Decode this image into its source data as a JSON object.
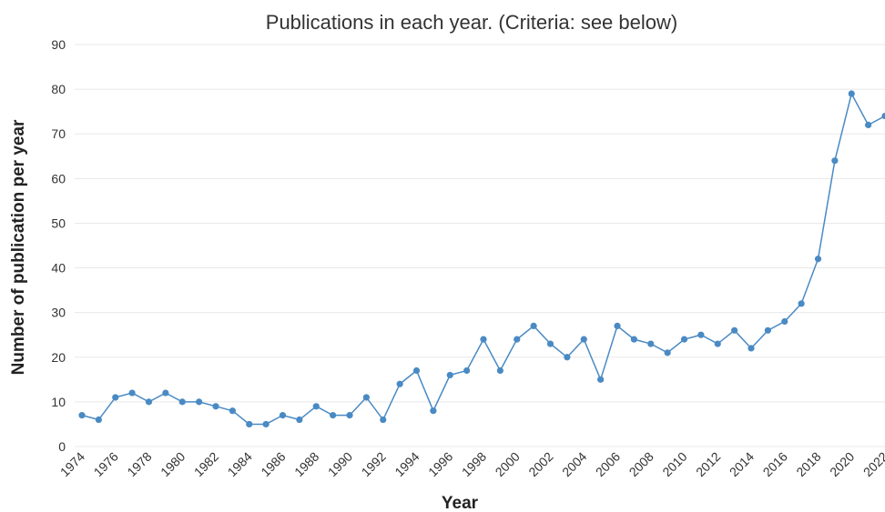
{
  "chart_data": {
    "type": "line",
    "title": "Publications in each year. (Criteria: see below)",
    "xlabel": "Year",
    "ylabel": "Number of publication per year",
    "ylim": [
      0,
      90
    ],
    "yticks": [
      0,
      10,
      20,
      30,
      40,
      50,
      60,
      70,
      80,
      90
    ],
    "xtick_labels": [
      "1974",
      "1976",
      "1978",
      "1980",
      "1982",
      "1984",
      "1986",
      "1988",
      "1990",
      "1992",
      "1994",
      "1996",
      "1998",
      "2000",
      "2002",
      "2004",
      "2006",
      "2008",
      "2010",
      "2012",
      "2014",
      "2016",
      "2018",
      "2020",
      "2022"
    ],
    "grid": true,
    "color": "#4a8ac4",
    "x": [
      1974,
      1975,
      1976,
      1977,
      1978,
      1979,
      1980,
      1981,
      1982,
      1983,
      1984,
      1985,
      1986,
      1987,
      1988,
      1989,
      1990,
      1991,
      1992,
      1993,
      1994,
      1995,
      1996,
      1997,
      1998,
      1999,
      2000,
      2001,
      2002,
      2003,
      2004,
      2005,
      2006,
      2007,
      2008,
      2009,
      2010,
      2011,
      2012,
      2013,
      2014,
      2015,
      2016,
      2017,
      2018,
      2019,
      2020,
      2021,
      2022
    ],
    "values": [
      7,
      6,
      11,
      12,
      10,
      12,
      10,
      10,
      9,
      8,
      5,
      5,
      7,
      6,
      9,
      7,
      7,
      11,
      6,
      14,
      17,
      8,
      16,
      17,
      24,
      17,
      24,
      27,
      23,
      20,
      24,
      15,
      27,
      24,
      23,
      21,
      24,
      25,
      23,
      26,
      22,
      26,
      28,
      32,
      42,
      64,
      79,
      72,
      74
    ]
  }
}
